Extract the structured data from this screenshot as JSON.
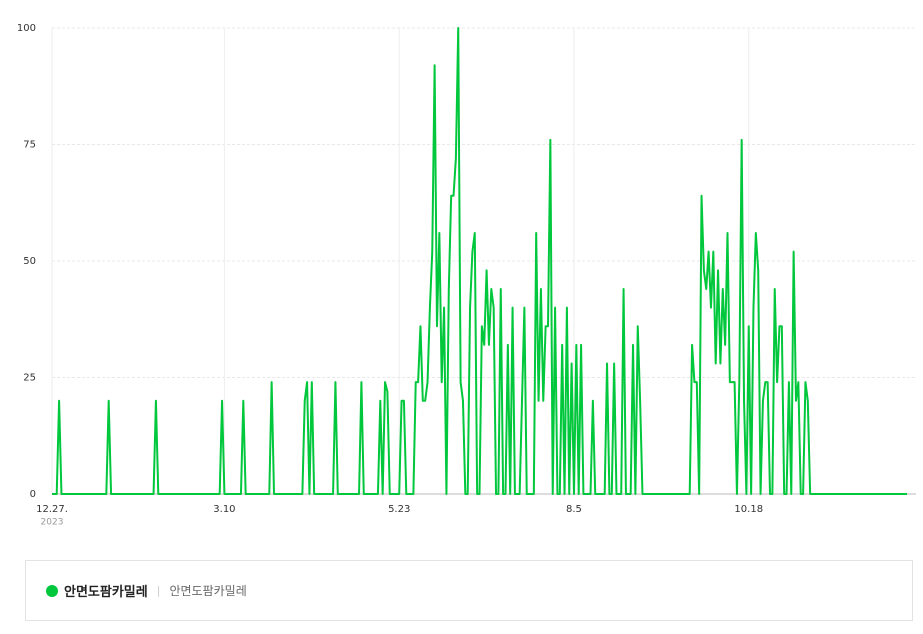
{
  "chart_data": {
    "type": "line",
    "categories": [
      "12.27.",
      null,
      null,
      null,
      null,
      null,
      null,
      null,
      null,
      null,
      null,
      null,
      null,
      null,
      null,
      null,
      null,
      null,
      null,
      null,
      null,
      null,
      null,
      null,
      null,
      null,
      null,
      null,
      null,
      null,
      null,
      null,
      null,
      null,
      null,
      null,
      null,
      null,
      null,
      null,
      null,
      null,
      null,
      null,
      null,
      null,
      null,
      null,
      null,
      null,
      null,
      null,
      null,
      null,
      null,
      null,
      null,
      null,
      null,
      null,
      null,
      null,
      null,
      null,
      null,
      null,
      null,
      null,
      null,
      null,
      null,
      null,
      null,
      "3.10",
      null,
      null,
      null,
      null,
      null,
      null,
      null,
      null,
      null,
      null,
      null,
      null,
      null,
      null,
      null,
      null,
      null,
      null,
      null,
      null,
      null,
      null,
      null,
      null,
      null,
      null,
      null,
      null,
      null,
      null,
      null,
      null,
      null,
      null,
      null,
      null,
      null,
      null,
      null,
      null,
      null,
      null,
      null,
      null,
      null,
      null,
      null,
      null,
      null,
      null,
      null,
      null,
      null,
      null,
      null,
      null,
      null,
      null,
      null,
      null,
      null,
      null,
      null,
      null,
      null,
      null,
      null,
      null,
      null,
      null,
      null,
      null,
      null,
      "5.23",
      null,
      null,
      null,
      null,
      null,
      null,
      null,
      null,
      null,
      null,
      null,
      null,
      null,
      null,
      null,
      null,
      null,
      null,
      null,
      null,
      null,
      null,
      null,
      null,
      null,
      null,
      null,
      null,
      null,
      null,
      null,
      null,
      null,
      null,
      null,
      null,
      null,
      null,
      null,
      null,
      null,
      null,
      null,
      null,
      null,
      null,
      null,
      null,
      null,
      null,
      null,
      null,
      null,
      null,
      null,
      null,
      null,
      null,
      null,
      null,
      null,
      null,
      null,
      null,
      null,
      null,
      null,
      null,
      null,
      null,
      null,
      null,
      null,
      "8.5",
      null,
      null,
      null,
      null,
      null,
      null,
      null,
      null,
      null,
      null,
      null,
      null,
      null,
      null,
      null,
      null,
      null,
      null,
      null,
      null,
      null,
      null,
      null,
      null,
      null,
      null,
      null,
      null,
      null,
      null,
      null,
      null,
      null,
      null,
      null,
      null,
      null,
      null,
      null,
      null,
      null,
      null,
      null,
      null,
      null,
      null,
      null,
      null,
      null,
      null,
      null,
      null,
      null,
      null,
      null,
      null,
      null,
      null,
      null,
      null,
      null,
      null,
      null,
      null,
      null,
      null,
      null,
      null,
      null,
      null,
      null,
      null,
      null,
      "10.18",
      null,
      null,
      null,
      null,
      null,
      null,
      null,
      null,
      null,
      null,
      null,
      null,
      null,
      null,
      null,
      null,
      null,
      null,
      null,
      null,
      null,
      null,
      null,
      null,
      null,
      null,
      null,
      null,
      null,
      null,
      null,
      null,
      null,
      null,
      null,
      null,
      null,
      null,
      null,
      null,
      null,
      null,
      null,
      null,
      null,
      null,
      null,
      null,
      null,
      null,
      null,
      null,
      null,
      null,
      null,
      null,
      null,
      null,
      null,
      null,
      null,
      null,
      null,
      null,
      null,
      null,
      null
    ],
    "first_year": "2023",
    "series": [
      {
        "name": "안면도팜카밀레",
        "keywords": "안면도팜카밀레",
        "color": "#00c73c",
        "values": [
          0,
          0,
          0,
          20,
          0,
          0,
          0,
          0,
          0,
          0,
          0,
          0,
          0,
          0,
          0,
          0,
          0,
          0,
          0,
          0,
          0,
          0,
          0,
          0,
          20,
          0,
          0,
          0,
          0,
          0,
          0,
          0,
          0,
          0,
          0,
          0,
          0,
          0,
          0,
          0,
          0,
          0,
          0,
          0,
          20,
          0,
          0,
          0,
          0,
          0,
          0,
          0,
          0,
          0,
          0,
          0,
          0,
          0,
          0,
          0,
          0,
          0,
          0,
          0,
          0,
          0,
          0,
          0,
          0,
          0,
          0,
          0,
          20,
          0,
          0,
          0,
          0,
          0,
          0,
          0,
          0,
          20,
          0,
          0,
          0,
          0,
          0,
          0,
          0,
          0,
          0,
          0,
          0,
          24,
          0,
          0,
          0,
          0,
          0,
          0,
          0,
          0,
          0,
          0,
          0,
          0,
          0,
          20,
          24,
          0,
          24,
          0,
          0,
          0,
          0,
          0,
          0,
          0,
          0,
          0,
          24,
          0,
          0,
          0,
          0,
          0,
          0,
          0,
          0,
          0,
          0,
          24,
          0,
          0,
          0,
          0,
          0,
          0,
          0,
          20,
          0,
          24,
          22,
          0,
          0,
          0,
          0,
          0,
          20,
          20,
          0,
          0,
          0,
          0,
          24,
          24,
          36,
          20,
          20,
          24,
          40,
          52,
          92,
          36,
          56,
          24,
          40,
          0,
          44,
          64,
          64,
          72,
          100,
          24,
          20,
          0,
          0,
          40,
          52,
          56,
          0,
          0,
          36,
          32,
          48,
          32,
          44,
          40,
          0,
          0,
          44,
          0,
          0,
          32,
          0,
          40,
          0,
          0,
          0,
          20,
          40,
          0,
          0,
          0,
          0,
          56,
          20,
          44,
          20,
          36,
          36,
          76,
          0,
          40,
          0,
          0,
          32,
          0,
          40,
          0,
          28,
          0,
          32,
          0,
          32,
          0,
          0,
          0,
          0,
          20,
          0,
          0,
          0,
          0,
          0,
          28,
          0,
          0,
          28,
          0,
          0,
          0,
          44,
          0,
          0,
          0,
          32,
          0,
          36,
          20,
          0,
          0,
          0,
          0,
          0,
          0,
          0,
          0,
          0,
          0,
          0,
          0,
          0,
          0,
          0,
          0,
          0,
          0,
          0,
          0,
          0,
          32,
          24,
          24,
          0,
          64,
          48,
          44,
          52,
          40,
          52,
          28,
          48,
          28,
          44,
          32,
          56,
          24,
          24,
          24,
          0,
          24,
          76,
          20,
          0,
          36,
          0,
          40,
          56,
          48,
          0,
          20,
          24,
          24,
          0,
          0,
          44,
          24,
          36,
          36,
          0,
          0,
          24,
          0,
          52,
          20,
          24,
          0,
          0,
          24,
          20,
          0,
          0,
          0,
          0,
          0,
          0,
          0,
          0,
          0,
          0,
          0,
          0,
          0,
          0,
          0,
          0,
          0,
          0,
          0,
          0,
          0,
          0,
          0,
          0,
          0,
          0,
          0,
          0,
          0,
          0,
          0,
          0,
          0,
          0,
          0,
          0,
          0,
          0,
          0,
          0,
          0,
          0
        ]
      }
    ],
    "ylim": [
      0,
      100
    ],
    "yticks": [
      0,
      25,
      50,
      75,
      100
    ],
    "grid": true
  }
}
